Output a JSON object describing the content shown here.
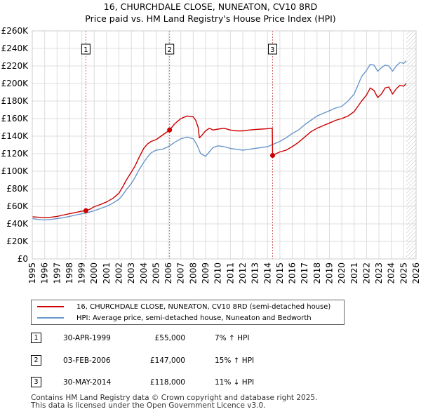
{
  "header": {
    "title_line1": "16, CHURCHDALE CLOSE, NUNEATON, CV10 8RD",
    "title_line2": "Price paid vs. HM Land Registry's House Price Index (HPI)"
  },
  "colors": {
    "property": "#cc0000",
    "hpi": "#6a97cc",
    "sale_marker": "#cc0000",
    "vline": "#cc6666",
    "hatch": "#c8c8c8"
  },
  "chart_data": {
    "type": "line",
    "title": "Price paid vs. HM Land Registry's House Price Index (HPI)",
    "xlim": [
      1995,
      2026
    ],
    "ylim": [
      0,
      260000
    ],
    "y_ticks": [
      0,
      20000,
      40000,
      60000,
      80000,
      100000,
      120000,
      140000,
      160000,
      180000,
      200000,
      220000,
      240000,
      260000
    ],
    "y_tick_labels": [
      "£0",
      "£20K",
      "£40K",
      "£60K",
      "£80K",
      "£100K",
      "£120K",
      "£140K",
      "£160K",
      "£180K",
      "£200K",
      "£220K",
      "£240K",
      "£260K"
    ],
    "x_ticks": [
      1995,
      1996,
      1997,
      1998,
      1999,
      2000,
      2001,
      2002,
      2003,
      2004,
      2005,
      2006,
      2007,
      2008,
      2009,
      2010,
      2011,
      2012,
      2013,
      2014,
      2015,
      2016,
      2017,
      2018,
      2019,
      2020,
      2021,
      2022,
      2023,
      2024,
      2025,
      2026
    ],
    "x_tick_labels": [
      "1995",
      "1996",
      "1997",
      "1998",
      "1999",
      "2000",
      "2001",
      "2002",
      "2003",
      "2004",
      "2005",
      "2006",
      "2007",
      "2008",
      "2009",
      "2010",
      "2011",
      "2012",
      "2013",
      "2014",
      "2015",
      "2016",
      "2017",
      "2018",
      "2019",
      "2020",
      "2021",
      "2022",
      "2023",
      "2024",
      "2025",
      "2026"
    ],
    "grid": true,
    "future_hatch_from": 2025.2,
    "series": [
      {
        "name": "16, CHURCHDALE CLOSE, NUNEATON, CV10 8RD (semi-detached house)",
        "x": [
          1995.0,
          1995.5,
          1996.0,
          1996.5,
          1997.0,
          1997.5,
          1998.0,
          1998.5,
          1999.0,
          1999.33,
          1999.7,
          2000.0,
          2000.5,
          2001.0,
          2001.5,
          2002.0,
          2002.3,
          2002.6,
          2003.0,
          2003.3,
          2003.6,
          2004.0,
          2004.3,
          2004.6,
          2005.0,
          2005.4,
          2005.8,
          2006.09,
          2006.5,
          2007.0,
          2007.5,
          2008.0,
          2008.2,
          2008.4,
          2008.5,
          2008.7,
          2009.0,
          2009.3,
          2009.6,
          2010.0,
          2010.5,
          2011.0,
          2011.5,
          2012.0,
          2012.5,
          2013.0,
          2013.5,
          2014.0,
          2014.38,
          2014.41,
          2014.7,
          2015.0,
          2015.5,
          2016.0,
          2016.5,
          2017.0,
          2017.5,
          2018.0,
          2018.5,
          2019.0,
          2019.5,
          2020.0,
          2020.5,
          2021.0,
          2021.3,
          2021.6,
          2022.0,
          2022.3,
          2022.6,
          2022.9,
          2023.2,
          2023.5,
          2023.8,
          2024.1,
          2024.4,
          2024.7,
          2025.0,
          2025.2
        ],
        "values": [
          48000,
          47500,
          47000,
          47500,
          48500,
          50000,
          51500,
          53000,
          54500,
          55000,
          57000,
          59500,
          62000,
          65000,
          69000,
          75000,
          82000,
          90000,
          99000,
          106000,
          115000,
          126000,
          131000,
          134000,
          136000,
          140000,
          144000,
          147000,
          154000,
          160000,
          163000,
          162000,
          158000,
          150000,
          138000,
          141000,
          146000,
          149000,
          147000,
          148000,
          149000,
          147000,
          146000,
          146000,
          147000,
          147500,
          148000,
          148500,
          149000,
          118000,
          120000,
          122000,
          124000,
          128000,
          133000,
          139000,
          145000,
          149000,
          152000,
          155000,
          158000,
          160000,
          163000,
          168000,
          174000,
          180000,
          187000,
          195000,
          192000,
          184000,
          188000,
          195000,
          196000,
          188000,
          194000,
          198000,
          197000,
          200000
        ]
      },
      {
        "name": "HPI: Average price, semi-detached house, Nuneaton and Bedworth",
        "x": [
          1995.0,
          1995.5,
          1996.0,
          1996.5,
          1997.0,
          1997.5,
          1998.0,
          1998.5,
          1999.0,
          1999.5,
          2000.0,
          2000.5,
          2001.0,
          2001.5,
          2002.0,
          2002.3,
          2002.6,
          2003.0,
          2003.3,
          2003.6,
          2004.0,
          2004.3,
          2004.6,
          2005.0,
          2005.5,
          2006.0,
          2006.5,
          2007.0,
          2007.5,
          2008.0,
          2008.3,
          2008.6,
          2009.0,
          2009.3,
          2009.6,
          2010.0,
          2010.5,
          2011.0,
          2011.5,
          2012.0,
          2012.5,
          2013.0,
          2013.5,
          2014.0,
          2014.5,
          2015.0,
          2015.5,
          2016.0,
          2016.5,
          2017.0,
          2017.5,
          2018.0,
          2018.5,
          2019.0,
          2019.5,
          2020.0,
          2020.5,
          2021.0,
          2021.3,
          2021.6,
          2022.0,
          2022.3,
          2022.6,
          2022.9,
          2023.2,
          2023.5,
          2023.8,
          2024.1,
          2024.4,
          2024.7,
          2025.0,
          2025.2
        ],
        "values": [
          46000,
          45000,
          44500,
          45000,
          46000,
          47000,
          48500,
          50000,
          51500,
          53000,
          55000,
          57500,
          60000,
          63500,
          68000,
          73000,
          79000,
          86000,
          93000,
          101000,
          110000,
          116000,
          121000,
          124000,
          125000,
          128000,
          133000,
          137000,
          139000,
          137000,
          130000,
          120000,
          117000,
          122000,
          127000,
          129000,
          128000,
          126000,
          125000,
          124000,
          125000,
          126000,
          127000,
          128000,
          131000,
          134000,
          138000,
          143000,
          147000,
          153000,
          158000,
          163000,
          166000,
          169000,
          172000,
          174000,
          180000,
          188000,
          198000,
          208000,
          215000,
          222000,
          221000,
          214000,
          218000,
          221000,
          220000,
          214000,
          220000,
          224000,
          223000,
          226000
        ]
      }
    ],
    "sales": [
      {
        "label": "1",
        "date": "30-APR-1999",
        "x": 1999.33,
        "price": 55000,
        "price_label": "£55,000",
        "hpi_change": "7% ↑ HPI"
      },
      {
        "label": "2",
        "date": "03-FEB-2006",
        "x": 2006.09,
        "price": 147000,
        "price_label": "£147,000",
        "hpi_change": "15% ↑ HPI"
      },
      {
        "label": "3",
        "date": "30-MAY-2014",
        "x": 2014.41,
        "price": 118000,
        "price_label": "£118,000",
        "hpi_change": "11% ↓ HPI"
      }
    ]
  },
  "legend": {
    "property_label": "16, CHURCHDALE CLOSE, NUNEATON, CV10 8RD (semi-detached house)",
    "hpi_label": "HPI: Average price, semi-detached house, Nuneaton and Bedworth"
  },
  "footer": {
    "line1": "Contains HM Land Registry data © Crown copyright and database right 2025.",
    "line2": "This data is licensed under the Open Government Licence v3.0."
  }
}
